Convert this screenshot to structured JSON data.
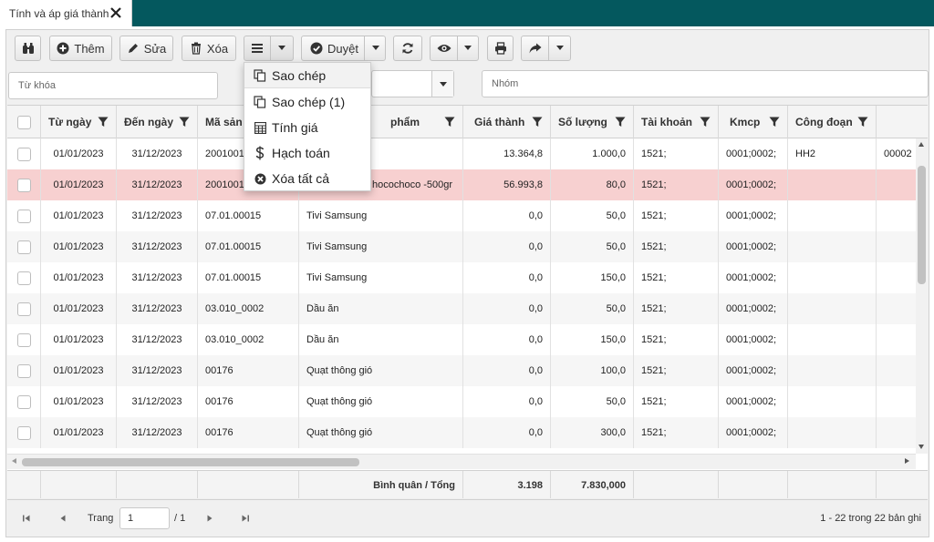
{
  "tab": {
    "title": "Tính và áp giá thành"
  },
  "toolbar": {
    "add_label": "Thêm",
    "edit_label": "Sửa",
    "delete_label": "Xóa",
    "approve_label": "Duyệt"
  },
  "filters": {
    "keyword_placeholder": "Từ khóa",
    "group_placeholder": "Nhóm"
  },
  "menu": {
    "items": [
      {
        "label": "Sao chép",
        "icon": "copy-icon"
      },
      {
        "label": "Sao chép (1)",
        "icon": "copy-icon"
      },
      {
        "label": "Tính giá",
        "icon": "calculator-icon"
      },
      {
        "label": "Hạch toán",
        "icon": "dollar-icon"
      },
      {
        "label": "Xóa tất cả",
        "icon": "remove-circle-icon"
      }
    ]
  },
  "grid": {
    "columns": [
      "Từ ngày",
      "Đến ngày",
      "Mã sản",
      "Tên sản phẩm",
      "Giá thành",
      "Số lượng",
      "Tài khoản",
      "Kmcp",
      "Công đoạn"
    ],
    "product_header_fragment": "phẩm",
    "rows": [
      {
        "from": "01/01/2023",
        "to": "31/12/2023",
        "code": "2001001",
        "name": "",
        "price": "13.364,8",
        "qty": "1.000,0",
        "acct": "1521;",
        "kmcp": "0001;0002;",
        "stage": "HH2",
        "extra": "00002",
        "selected": false
      },
      {
        "from": "01/01/2023",
        "to": "31/12/2023",
        "code": "2001001",
        "name": "hocochoco -500gr",
        "price": "56.993,8",
        "qty": "80,0",
        "acct": "1521;",
        "kmcp": "0001;0002;",
        "stage": "",
        "extra": "",
        "selected": true
      },
      {
        "from": "01/01/2023",
        "to": "31/12/2023",
        "code": "07.01.00015",
        "name": "Tivi Samsung",
        "price": "0,0",
        "qty": "50,0",
        "acct": "1521;",
        "kmcp": "0001;0002;",
        "stage": "",
        "extra": "",
        "selected": false
      },
      {
        "from": "01/01/2023",
        "to": "31/12/2023",
        "code": "07.01.00015",
        "name": "Tivi Samsung",
        "price": "0,0",
        "qty": "50,0",
        "acct": "1521;",
        "kmcp": "0001;0002;",
        "stage": "",
        "extra": "",
        "selected": false
      },
      {
        "from": "01/01/2023",
        "to": "31/12/2023",
        "code": "07.01.00015",
        "name": "Tivi Samsung",
        "price": "0,0",
        "qty": "150,0",
        "acct": "1521;",
        "kmcp": "0001;0002;",
        "stage": "",
        "extra": "",
        "selected": false
      },
      {
        "from": "01/01/2023",
        "to": "31/12/2023",
        "code": "03.010_0002",
        "name": "Dầu ăn",
        "price": "0,0",
        "qty": "50,0",
        "acct": "1521;",
        "kmcp": "0001;0002;",
        "stage": "",
        "extra": "",
        "selected": false
      },
      {
        "from": "01/01/2023",
        "to": "31/12/2023",
        "code": "03.010_0002",
        "name": "Dầu ăn",
        "price": "0,0",
        "qty": "150,0",
        "acct": "1521;",
        "kmcp": "0001;0002;",
        "stage": "",
        "extra": "",
        "selected": false
      },
      {
        "from": "01/01/2023",
        "to": "31/12/2023",
        "code": "00176",
        "name": "Quạt thông gió",
        "price": "0,0",
        "qty": "100,0",
        "acct": "1521;",
        "kmcp": "0001;0002;",
        "stage": "",
        "extra": "",
        "selected": false
      },
      {
        "from": "01/01/2023",
        "to": "31/12/2023",
        "code": "00176",
        "name": "Quạt thông gió",
        "price": "0,0",
        "qty": "50,0",
        "acct": "1521;",
        "kmcp": "0001;0002;",
        "stage": "",
        "extra": "",
        "selected": false
      },
      {
        "from": "01/01/2023",
        "to": "31/12/2023",
        "code": "00176",
        "name": "Quạt thông gió",
        "price": "0,0",
        "qty": "300,0",
        "acct": "1521;",
        "kmcp": "0001;0002;",
        "stage": "",
        "extra": "",
        "selected": false
      }
    ],
    "footer": {
      "label": "Bình quân / Tổng",
      "avg_price": "3.198",
      "total_qty": "7.830,000"
    }
  },
  "pager": {
    "page_label": "Trang",
    "page_value": "1",
    "page_total": "/ 1",
    "summary": "1 - 22 trong 22 bản ghi"
  },
  "colors": {
    "topbar": "#04585e",
    "selected_row": "#f7d0d0"
  }
}
